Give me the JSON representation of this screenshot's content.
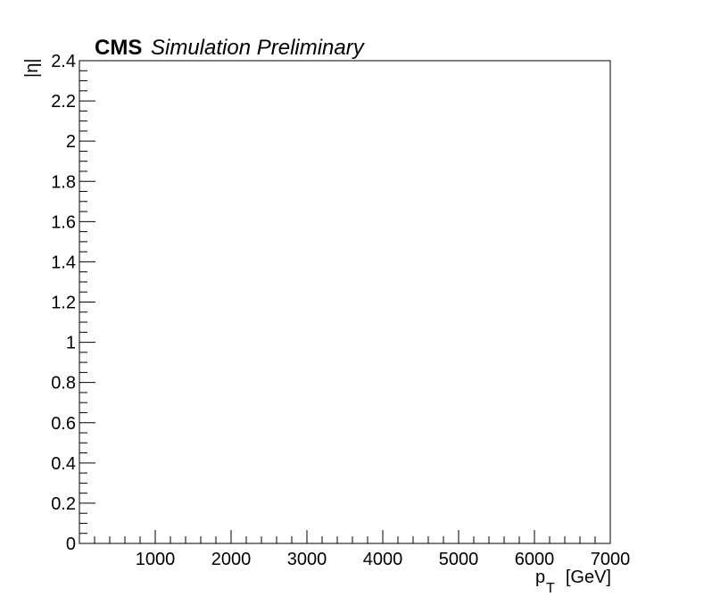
{
  "chart_data": {
    "type": "scatter",
    "title_bold": "CMS",
    "title_italic": "Simulation Preliminary",
    "xlabel_main": "p",
    "xlabel_sub": "T",
    "xlabel_unit": "[GeV]",
    "ylabel": "|η|",
    "xlim": [
      0,
      7000
    ],
    "ylim": [
      0,
      2.4
    ],
    "x_ticks": [
      1000,
      2000,
      3000,
      4000,
      5000,
      6000,
      7000
    ],
    "y_ticks": [
      0,
      0.2,
      0.4,
      0.6,
      0.8,
      1,
      1.2,
      1.4,
      1.6,
      1.8,
      2,
      2.2,
      2.4
    ],
    "x_tick_labels": [
      "1000",
      "2000",
      "3000",
      "4000",
      "5000",
      "6000",
      "7000"
    ],
    "y_tick_labels": [
      "0",
      "0.2",
      "0.4",
      "0.6",
      "0.8",
      "1",
      "1.2",
      "1.4",
      "1.6",
      "1.8",
      "2",
      "2.2",
      "2.4"
    ],
    "series": [],
    "grid": false
  }
}
